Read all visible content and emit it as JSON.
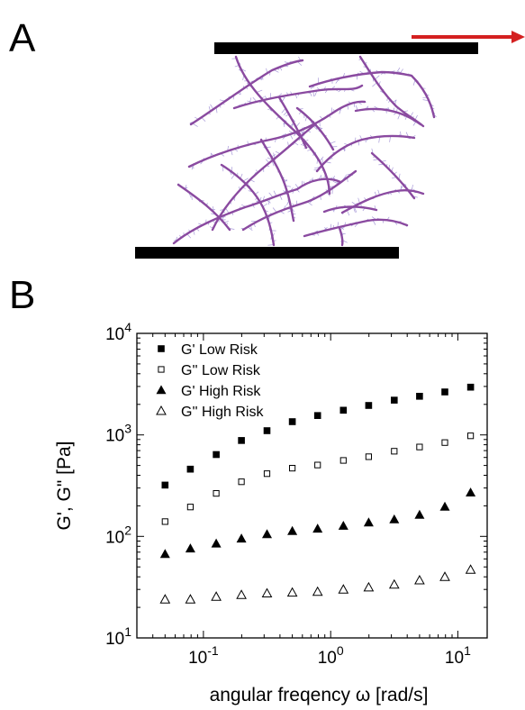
{
  "panel_a": {
    "label": "A"
  },
  "panel_b": {
    "label": "B"
  },
  "colors": {
    "fiber": "#8a4aa0",
    "fiber_fuzz": "#a89ad8",
    "plate": "#000000",
    "arrow": "#d42020"
  },
  "chart_data": {
    "type": "scatter",
    "xscale": "log",
    "yscale": "log",
    "xlim": [
      0.03,
      17
    ],
    "ylim": [
      10,
      10000
    ],
    "xlabel": "angular freqency ω [rad/s]",
    "ylabel": "G', G\" [Pa]",
    "xticks": [
      {
        "value": 0.1,
        "base": "10",
        "exp": "-1"
      },
      {
        "value": 1,
        "base": "10",
        "exp": "0"
      },
      {
        "value": 10,
        "base": "10",
        "exp": "1"
      }
    ],
    "yticks": [
      {
        "value": 10,
        "base": "10",
        "exp": "1"
      },
      {
        "value": 100,
        "base": "10",
        "exp": "2"
      },
      {
        "value": 1000,
        "base": "10",
        "exp": "3"
      },
      {
        "value": 10000,
        "base": "10",
        "exp": "4"
      }
    ],
    "legend_position": "top-left",
    "x": [
      0.05,
      0.079,
      0.126,
      0.199,
      0.316,
      0.5,
      0.79,
      1.26,
      1.99,
      3.16,
      5.0,
      7.9,
      12.6
    ],
    "series": [
      {
        "name": "G' Low Risk",
        "marker": "square-filled",
        "values": [
          320,
          460,
          640,
          880,
          1100,
          1350,
          1550,
          1750,
          1950,
          2200,
          2400,
          2650,
          2950
        ]
      },
      {
        "name": "G'' Low Risk",
        "marker": "square-open",
        "values": [
          140,
          195,
          265,
          345,
          415,
          470,
          505,
          560,
          610,
          690,
          760,
          840,
          980
        ]
      },
      {
        "name": "G' High Risk",
        "marker": "triangle-filled",
        "values": [
          67,
          76,
          85,
          95,
          105,
          113,
          119,
          127,
          137,
          147,
          163,
          196,
          270
        ]
      },
      {
        "name": "G'' High Risk",
        "marker": "triangle-open",
        "values": [
          24,
          24,
          25.5,
          26.5,
          27.5,
          28,
          28.5,
          30,
          31.5,
          33.5,
          37,
          40,
          47
        ]
      }
    ]
  }
}
